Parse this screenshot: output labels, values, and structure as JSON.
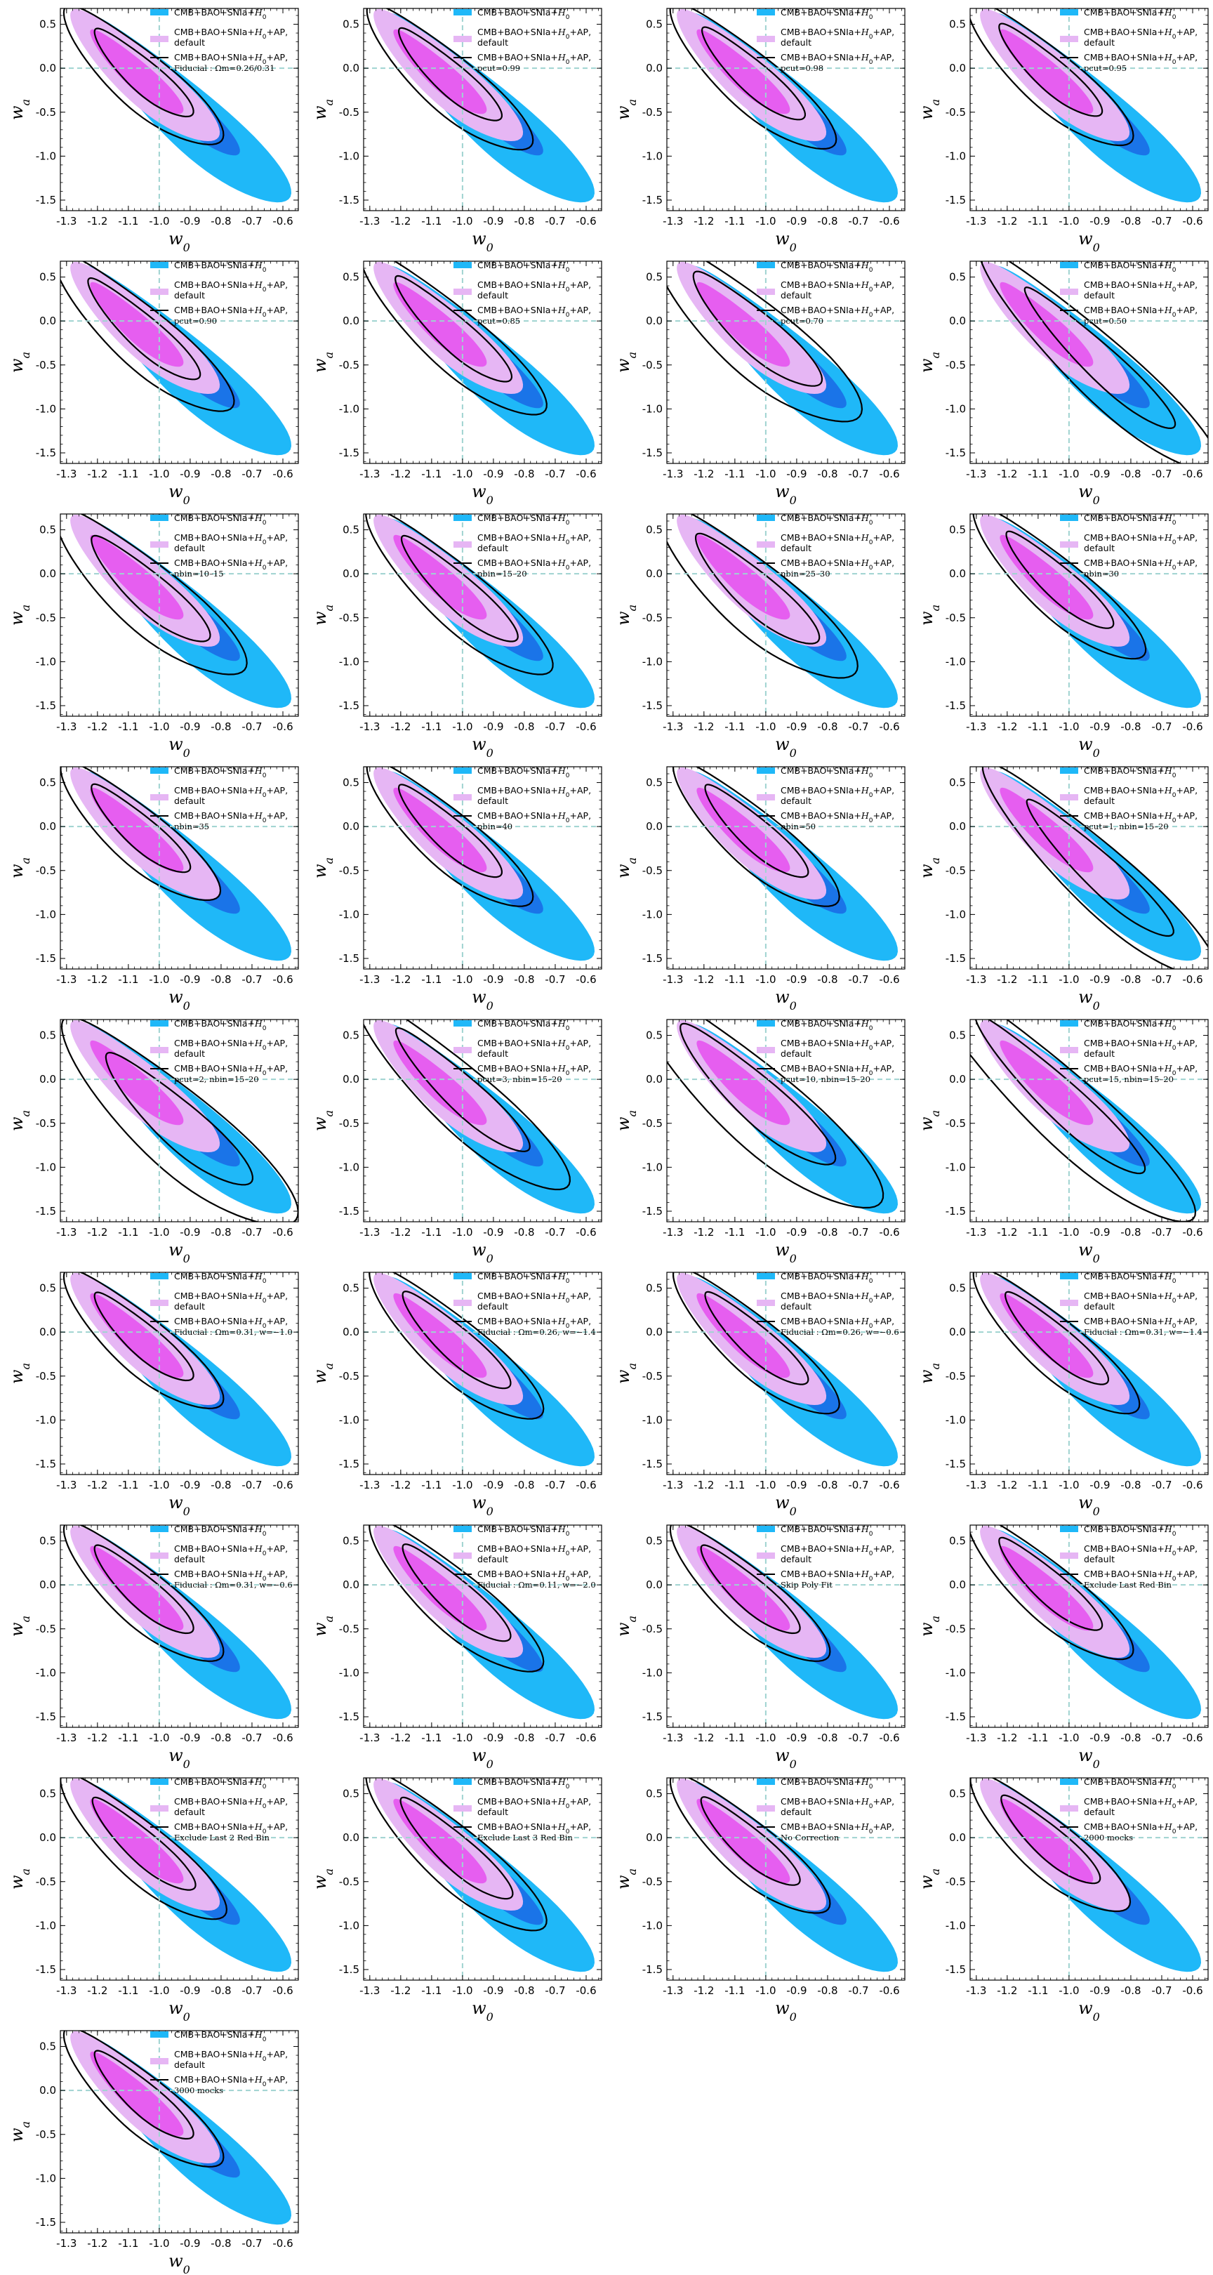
{
  "chart_data": {
    "type": "contour",
    "grid": "8 rows x 4 columns plus 1 panel",
    "xlabel": "w0",
    "ylabel": "wa",
    "xlim": [
      -1.32,
      -0.55
    ],
    "ylim": [
      -1.62,
      0.68
    ],
    "xticks": [
      "-1.3",
      "-1.2",
      "-1.1",
      "-1.0",
      "-0.9",
      "-0.8",
      "-0.7",
      "-0.6"
    ],
    "yticks": [
      "0.5",
      "0.0",
      "-0.5",
      "-1.0",
      "-1.5"
    ],
    "reference_lines": {
      "w0": -1.0,
      "wa": 0.0,
      "style": "dashed",
      "color": "#9fd3d0"
    },
    "colors": {
      "blue_outer": "#1fb8f8",
      "blue_inner": "#1a74e8",
      "pink_outer": "#e6b6f4",
      "pink_inner": "#e65ef0",
      "black": "#000000"
    },
    "legend": {
      "placement": "top-right",
      "entry1": "CMB+BAO+SNIa+H0",
      "entry2": "CMB+BAO+SNIa+H0+AP,",
      "entry2b": "default",
      "entry3": "CMB+BAO+SNIa+H0+AP,"
    },
    "series": [
      {
        "name": "CMB+BAO+SNIa+H0",
        "role": "blue",
        "contours": "68%/95%",
        "center": [
          -0.93,
          -0.28
        ]
      },
      {
        "name": "CMB+BAO+SNIa+H0+AP, default",
        "role": "pink",
        "contours": "68%/95%",
        "center": [
          -1.08,
          -0.07
        ]
      },
      {
        "name": "CMB+BAO+SNIa+H0+AP, variant",
        "role": "black line",
        "contours": "68%/95%"
      }
    ],
    "panels": [
      {
        "variant": "Fiducial : Ωm=0.26/0.31",
        "cx": -1.07,
        "cy": -0.08,
        "sa": 1.0,
        "sb": 1.0
      },
      {
        "variant": "pcut=0.99",
        "cx": -1.06,
        "cy": -0.1,
        "sa": 1.05,
        "sb": 1.0
      },
      {
        "variant": "pcut=0.98",
        "cx": -1.06,
        "cy": -0.09,
        "sa": 1.05,
        "sb": 1.0
      },
      {
        "variant": "pcut=0.95",
        "cx": -1.08,
        "cy": -0.05,
        "sa": 1.05,
        "sb": 1.0
      },
      {
        "variant": "pcut=0.90",
        "cx": -1.07,
        "cy": -0.12,
        "sa": 1.15,
        "sb": 1.05
      },
      {
        "variant": "pcut=0.85",
        "cx": -1.05,
        "cy": -0.12,
        "sa": 1.2,
        "sb": 1.05
      },
      {
        "variant": "pcut=0.70",
        "cx": -1.05,
        "cy": -0.12,
        "sa": 1.3,
        "sb": 1.3
      },
      {
        "variant": "pcut=0.50",
        "cx": -0.92,
        "cy": -0.45,
        "sa": 1.6,
        "sb": 1.05
      },
      {
        "variant": "nbin=10–15",
        "cx": -1.05,
        "cy": -0.2,
        "sa": 1.2,
        "sb": 1.2
      },
      {
        "variant": "nbin=15–20",
        "cx": -1.03,
        "cy": -0.2,
        "sa": 1.2,
        "sb": 1.05
      },
      {
        "variant": "nbin=25–30",
        "cx": -1.05,
        "cy": -0.2,
        "sa": 1.25,
        "sb": 1.25
      },
      {
        "variant": "nbin=30",
        "cx": -1.05,
        "cy": -0.1,
        "sa": 1.1,
        "sb": 1.0
      },
      {
        "variant": "nbin=35",
        "cx": -1.08,
        "cy": -0.05,
        "sa": 1.0,
        "sb": 1.0
      },
      {
        "variant": "nbin=40",
        "cx": -1.06,
        "cy": -0.08,
        "sa": 1.05,
        "sb": 1.0
      },
      {
        "variant": "nbin=50",
        "cx": -1.05,
        "cy": -0.08,
        "sa": 1.05,
        "sb": 1.0
      },
      {
        "variant": "pcut=1, nbin=15–20",
        "cx": -0.92,
        "cy": -0.5,
        "sa": 1.55,
        "sb": 1.1
      },
      {
        "variant": "pcut=2, nbin=15–20",
        "cx": -0.96,
        "cy": -0.48,
        "sa": 1.5,
        "sb": 1.4
      },
      {
        "variant": "pcut=3, nbin=15–20",
        "cx": -1.02,
        "cy": -0.15,
        "sa": 1.4,
        "sb": 1.1
      },
      {
        "variant": "pcut=10, nbin=15–20",
        "cx": -1.05,
        "cy": -0.2,
        "sa": 1.6,
        "sb": 1.4
      },
      {
        "variant": "pcut=15, nbin=15–20",
        "cx": -1.05,
        "cy": -0.2,
        "sa": 1.8,
        "sb": 1.2
      },
      {
        "variant": "Fiducial : Ωm=0.31, w=−1.0",
        "cx": -1.07,
        "cy": -0.08,
        "sa": 1.0,
        "sb": 1.0
      },
      {
        "variant": "Fiducial : Ωm=0.26, w=−1.4",
        "cx": -1.04,
        "cy": -0.12,
        "sa": 1.1,
        "sb": 1.05
      },
      {
        "variant": "Fiducial : Ωm=0.26, w=−0.6",
        "cx": -1.05,
        "cy": -0.1,
        "sa": 1.05,
        "sb": 1.0
      },
      {
        "variant": "Fiducial : Ωm=0.31, w=−1.4",
        "cx": -1.06,
        "cy": -0.1,
        "sa": 1.05,
        "sb": 1.0
      },
      {
        "variant": "Fiducial : Ωm=0.31, w=−0.6",
        "cx": -1.07,
        "cy": -0.08,
        "sa": 1.0,
        "sb": 1.0
      },
      {
        "variant": "Fiducial : Ωm=0.11, w=−2.0",
        "cx": -1.04,
        "cy": -0.12,
        "sa": 1.1,
        "sb": 1.05
      },
      {
        "variant": "Skip Poly Fit",
        "cx": -1.07,
        "cy": -0.08,
        "sa": 1.0,
        "sb": 1.0
      },
      {
        "variant": "Exclude Last Red Bin",
        "cx": -1.08,
        "cy": -0.02,
        "sa": 1.05,
        "sb": 1.0
      },
      {
        "variant": "Exclude Last 2 Red Bin",
        "cx": -1.07,
        "cy": -0.1,
        "sa": 1.05,
        "sb": 1.0
      },
      {
        "variant": "Exclude Last 3 Red Bin",
        "cx": -1.04,
        "cy": -0.15,
        "sa": 1.15,
        "sb": 1.05
      },
      {
        "variant": "No Correction",
        "cx": -1.07,
        "cy": -0.07,
        "sa": 1.0,
        "sb": 1.0
      },
      {
        "variant": "2000 mocks",
        "cx": -1.08,
        "cy": -0.05,
        "sa": 1.0,
        "sb": 1.0
      },
      {
        "variant": "3000 mocks",
        "cx": -1.07,
        "cy": -0.08,
        "sa": 1.0,
        "sb": 1.0
      }
    ]
  }
}
